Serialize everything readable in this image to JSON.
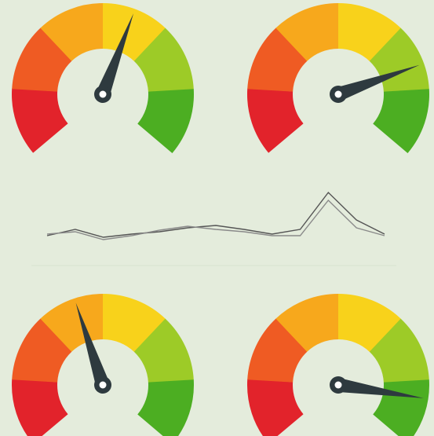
{
  "chart_data": [
    {
      "type": "gauge",
      "range": [
        0,
        100
      ],
      "value": 58,
      "colors": [
        "#e2232b",
        "#ef5b23",
        "#f7a81c",
        "#f8d21b",
        "#9dcb27",
        "#4cae22"
      ],
      "needle_color": "#2e3a3f"
    },
    {
      "type": "gauge",
      "range": [
        0,
        100
      ],
      "value": 77,
      "colors": [
        "#e2232b",
        "#ef5b23",
        "#f7a81c",
        "#f8d21b",
        "#9dcb27",
        "#4cae22"
      ],
      "needle_color": "#2e3a3f"
    },
    {
      "type": "line",
      "categories": [
        null,
        null,
        null,
        null,
        null,
        null,
        null,
        null,
        null,
        null,
        null,
        null,
        null
      ],
      "ylim": [
        0,
        100
      ],
      "series": [
        {
          "color": "#555555",
          "values": [
            20,
            28,
            18,
            22,
            25,
            30,
            33,
            28,
            22,
            28,
            75,
            40,
            22
          ]
        },
        {
          "color": "#8a8a8a",
          "values": [
            22,
            25,
            15,
            20,
            27,
            32,
            28,
            25,
            20,
            20,
            65,
            30,
            20
          ]
        }
      ]
    },
    {
      "type": "gauge",
      "range": [
        0,
        100
      ],
      "value": 43,
      "colors": [
        "#e2232b",
        "#ef5b23",
        "#f7a81c",
        "#f8d21b",
        "#9dcb27",
        "#4cae22"
      ],
      "needle_color": "#2e3a3f"
    },
    {
      "type": "gauge",
      "range": [
        0,
        100
      ],
      "value": 88,
      "colors": [
        "#e2232b",
        "#ef5b23",
        "#f7a81c",
        "#f8d21b",
        "#9dcb27",
        "#4cae22"
      ],
      "needle_color": "#2e3a3f"
    }
  ]
}
